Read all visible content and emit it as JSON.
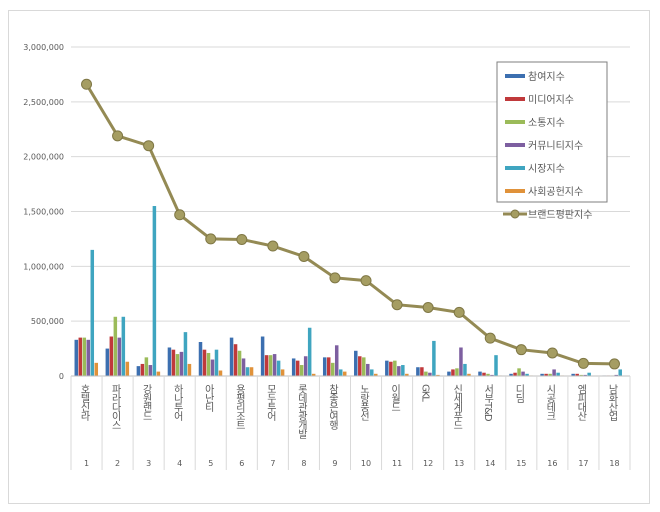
{
  "chart_data": {
    "type": "bar",
    "title": "",
    "xlabel": "",
    "ylabel": "",
    "ylim": [
      0,
      3000000
    ],
    "yticks": [
      "0",
      "500,000",
      "1,000,000",
      "1,500,000",
      "2,000,000",
      "2,500,000",
      "3,000,000"
    ],
    "ytick_values": [
      0,
      500000,
      1000000,
      1500000,
      2000000,
      2500000,
      3000000
    ],
    "grid": true,
    "legend_position": "top-right",
    "categories": [
      "호텔신라",
      "파라다이스",
      "강원랜드",
      "하나투어",
      "아난티",
      "용평리조트",
      "모두투어",
      "롯데관광개발",
      "참좋은여행",
      "노랑풍선",
      "이월드",
      "GKL",
      "신세계푸드",
      "서부T&D",
      "디딤",
      "시공테크",
      "엠피대산",
      "남화산업"
    ],
    "ranks": [
      "1",
      "2",
      "3",
      "4",
      "5",
      "6",
      "7",
      "8",
      "9",
      "10",
      "11",
      "12",
      "13",
      "14",
      "15",
      "16",
      "17",
      "18"
    ],
    "series": [
      {
        "name": "참여지수",
        "type": "bar",
        "color": "#3c6fb0",
        "values": [
          330000,
          250000,
          90000,
          260000,
          310000,
          350000,
          360000,
          160000,
          170000,
          230000,
          140000,
          80000,
          40000,
          40000,
          20000,
          20000,
          20000,
          5000
        ]
      },
      {
        "name": "미디어지수",
        "type": "bar",
        "color": "#c0393b",
        "values": [
          350000,
          360000,
          110000,
          240000,
          240000,
          290000,
          190000,
          140000,
          170000,
          180000,
          130000,
          80000,
          60000,
          30000,
          30000,
          20000,
          20000,
          5000
        ]
      },
      {
        "name": "소통지수",
        "type": "bar",
        "color": "#9bbb59",
        "values": [
          350000,
          540000,
          170000,
          200000,
          210000,
          230000,
          190000,
          100000,
          120000,
          170000,
          140000,
          40000,
          70000,
          20000,
          70000,
          20000,
          10000,
          5000
        ]
      },
      {
        "name": "커뮤니티지수",
        "type": "bar",
        "color": "#7d5fa0",
        "values": [
          330000,
          350000,
          100000,
          220000,
          150000,
          160000,
          200000,
          180000,
          280000,
          110000,
          90000,
          30000,
          260000,
          10000,
          40000,
          60000,
          10000,
          10000
        ]
      },
      {
        "name": "시장지수",
        "type": "bar",
        "color": "#3fa5c0",
        "values": [
          1150000,
          540000,
          1550000,
          400000,
          240000,
          80000,
          140000,
          440000,
          60000,
          60000,
          100000,
          320000,
          110000,
          190000,
          20000,
          30000,
          30000,
          60000
        ]
      },
      {
        "name": "사회공헌지수",
        "type": "bar",
        "color": "#e0923a",
        "values": [
          120000,
          130000,
          40000,
          110000,
          50000,
          80000,
          60000,
          20000,
          40000,
          20000,
          20000,
          10000,
          20000,
          5000,
          5000,
          5000,
          3000,
          3000
        ]
      },
      {
        "name": "브랜드평판지수",
        "type": "line",
        "color": "#948a54",
        "values": [
          2660000,
          2190000,
          2100000,
          1470000,
          1250000,
          1245000,
          1185000,
          1090000,
          895000,
          870000,
          650000,
          625000,
          580000,
          345000,
          240000,
          210000,
          115000,
          110000
        ]
      }
    ]
  }
}
